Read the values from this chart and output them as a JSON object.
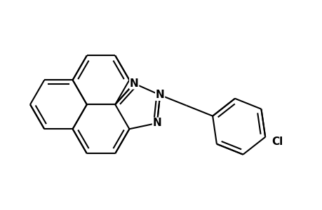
{
  "background_color": "#ffffff",
  "line_color": "#000000",
  "bond_width": 1.5,
  "font_size": 11,
  "label_N": "N",
  "label_Cl": "Cl"
}
